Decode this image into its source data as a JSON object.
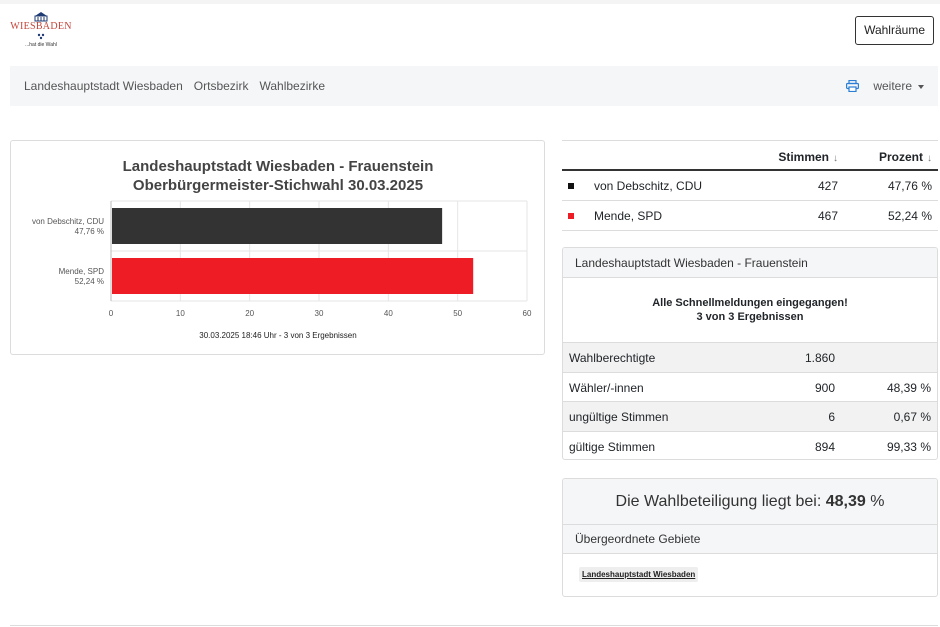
{
  "header": {
    "logo_text": "WIESBADEN",
    "logo_sub": "...hat die Wahl",
    "button_label": "Wahlräume"
  },
  "nav": {
    "links": [
      "Landeshauptstadt Wiesbaden",
      "Ortsbezirk",
      "Wahlbezirke"
    ],
    "more_label": "weitere",
    "print_icon": "printer-icon"
  },
  "chart_data": {
    "type": "bar",
    "orientation": "horizontal",
    "title": "Landeshauptstadt Wiesbaden - Frauenstein",
    "subtitle": "Oberbürgermeister-Stichwahl 30.03.2025",
    "categories": [
      "von Debschitz, CDU",
      "Mende, SPD"
    ],
    "category_value_labels": [
      "47,76 %",
      "52,24 %"
    ],
    "values": [
      47.76,
      52.24
    ],
    "colors": [
      "#333333",
      "#ee1c25"
    ],
    "xlim": [
      0,
      60
    ],
    "xticks": [
      0,
      10,
      20,
      30,
      40,
      50,
      60
    ],
    "grid": true,
    "caption": "30.03.2025 18:46 Uhr - 3 von 3 Ergebnissen"
  },
  "results": {
    "headers": {
      "stimmen": "Stimmen",
      "prozent": "Prozent",
      "sort_arrow": "↓"
    },
    "rows": [
      {
        "name": "von Debschitz, CDU",
        "stimmen": "427",
        "prozent": "47,76 %",
        "color": "#111111"
      },
      {
        "name": "Mende, SPD",
        "stimmen": "467",
        "prozent": "52,24 %",
        "color": "#ee1c25"
      }
    ]
  },
  "stats": {
    "title": "Landeshauptstadt Wiesbaden - Frauenstein",
    "message_line1": "Alle Schnellmeldungen eingegangen!",
    "message_line2": "3 von 3 Ergebnissen",
    "rows": [
      {
        "label": "Wahlberechtigte",
        "value": "1.860",
        "percent": ""
      },
      {
        "label": "Wähler/-innen",
        "value": "900",
        "percent": "48,39 %"
      },
      {
        "label": "ungültige Stimmen",
        "value": "6",
        "percent": "0,67 %"
      },
      {
        "label": "gültige Stimmen",
        "value": "894",
        "percent": "99,33 %"
      }
    ]
  },
  "turnout": {
    "prefix": "Die Wahlbeteiligung liegt bei:",
    "value": "48,39",
    "suffix": "%",
    "parent_title": "Übergeordnete Gebiete",
    "parent_link": "Landeshauptstadt Wiesbaden"
  }
}
